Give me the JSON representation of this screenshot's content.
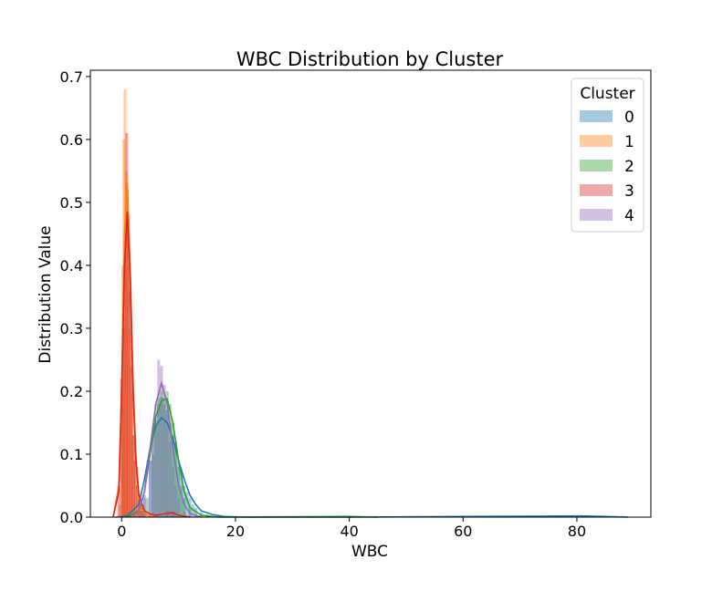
{
  "chart_data": {
    "type": "area",
    "title": "WBC Distribution by Cluster",
    "xlabel": "WBC",
    "ylabel": "Distribution Value",
    "xlim": [
      -5.5,
      93
    ],
    "ylim": [
      0,
      0.71
    ],
    "xticks": [
      0,
      20,
      40,
      60,
      80
    ],
    "xtick_labels": [
      "0",
      "20",
      "40",
      "60",
      "80"
    ],
    "yticks": [
      0.0,
      0.1,
      0.2,
      0.3,
      0.4,
      0.5,
      0.6,
      0.7
    ],
    "ytick_labels": [
      "0.0",
      "0.1",
      "0.2",
      "0.3",
      "0.4",
      "0.5",
      "0.6",
      "0.7"
    ],
    "legend": {
      "title": "Cluster",
      "placement": "top-right"
    },
    "grid": false,
    "series": [
      {
        "name": "0",
        "color": "#1f77b4",
        "hist": [
          [
            3,
            0.01
          ],
          [
            4,
            0.035
          ],
          [
            5,
            0.09
          ],
          [
            5.5,
            0.13
          ],
          [
            6,
            0.155
          ],
          [
            6.5,
            0.18
          ],
          [
            7,
            0.19
          ],
          [
            7.5,
            0.18
          ],
          [
            8,
            0.17
          ],
          [
            8.5,
            0.15
          ],
          [
            9,
            0.13
          ],
          [
            9.5,
            0.11
          ],
          [
            10,
            0.09
          ],
          [
            10.5,
            0.07
          ],
          [
            11,
            0.05
          ],
          [
            11.5,
            0.04
          ],
          [
            12,
            0.03
          ],
          [
            12.5,
            0.02
          ],
          [
            13,
            0.015
          ],
          [
            14,
            0.008
          ],
          [
            15,
            0.004
          ],
          [
            16,
            0.002
          ],
          [
            17,
            0.001
          ]
        ],
        "kde": [
          [
            -1,
            0
          ],
          [
            1,
            0.002
          ],
          [
            3,
            0.02
          ],
          [
            4,
            0.06
          ],
          [
            5,
            0.11
          ],
          [
            6,
            0.145
          ],
          [
            7,
            0.158
          ],
          [
            8,
            0.15
          ],
          [
            9,
            0.125
          ],
          [
            10,
            0.09
          ],
          [
            11,
            0.06
          ],
          [
            12,
            0.035
          ],
          [
            13,
            0.02
          ],
          [
            14,
            0.01
          ],
          [
            16,
            0.004
          ],
          [
            18,
            0.001
          ],
          [
            22,
            0
          ],
          [
            40,
            0
          ],
          [
            60,
            0.001
          ],
          [
            75,
            0.0015
          ],
          [
            80,
            0.002
          ],
          [
            85,
            0.001
          ],
          [
            89,
            0
          ]
        ]
      },
      {
        "name": "1",
        "color": "#ff7f0e",
        "hist": [
          [
            -0.3,
            0.02
          ],
          [
            0,
            0.18
          ],
          [
            0.2,
            0.4
          ],
          [
            0.4,
            0.6
          ],
          [
            0.6,
            0.68
          ],
          [
            0.8,
            0.55
          ],
          [
            1,
            0.52
          ],
          [
            1.2,
            0.4
          ],
          [
            1.5,
            0.3
          ],
          [
            1.8,
            0.2
          ],
          [
            2.1,
            0.13
          ],
          [
            2.4,
            0.09
          ],
          [
            2.7,
            0.05
          ],
          [
            3,
            0.03
          ],
          [
            3.3,
            0.02
          ],
          [
            3.6,
            0.01
          ]
        ],
        "kde": [
          [
            -1.5,
            0
          ],
          [
            -0.5,
            0.05
          ],
          [
            0,
            0.2
          ],
          [
            0.5,
            0.45
          ],
          [
            1,
            0.53
          ],
          [
            1.5,
            0.4
          ],
          [
            2,
            0.22
          ],
          [
            2.5,
            0.1
          ],
          [
            3,
            0.04
          ],
          [
            3.5,
            0.015
          ],
          [
            4.5,
            0.003
          ],
          [
            6,
            0
          ]
        ]
      },
      {
        "name": "2",
        "color": "#2ca02c",
        "hist": [
          [
            3.5,
            0.01
          ],
          [
            4.5,
            0.03
          ],
          [
            5.5,
            0.1
          ],
          [
            6,
            0.15
          ],
          [
            6.5,
            0.19
          ],
          [
            7,
            0.2
          ],
          [
            7.5,
            0.19
          ],
          [
            8,
            0.2
          ],
          [
            8.5,
            0.18
          ],
          [
            9,
            0.15
          ],
          [
            9.5,
            0.12
          ],
          [
            10,
            0.08
          ],
          [
            10.5,
            0.05
          ],
          [
            11,
            0.03
          ],
          [
            12,
            0.015
          ],
          [
            13,
            0.005
          ]
        ],
        "kde": [
          [
            1,
            0
          ],
          [
            3,
            0.01
          ],
          [
            4,
            0.04
          ],
          [
            5,
            0.1
          ],
          [
            6,
            0.16
          ],
          [
            7,
            0.185
          ],
          [
            8,
            0.188
          ],
          [
            9,
            0.15
          ],
          [
            10,
            0.09
          ],
          [
            11,
            0.04
          ],
          [
            12,
            0.015
          ],
          [
            14,
            0.003
          ],
          [
            17,
            0
          ],
          [
            40,
            0.001
          ],
          [
            45,
            0
          ]
        ]
      },
      {
        "name": "3",
        "color": "#d62728",
        "hist": [
          [
            -0.5,
            0.05
          ],
          [
            0,
            0.22
          ],
          [
            0.3,
            0.3
          ],
          [
            0.6,
            0.45
          ],
          [
            0.9,
            0.61
          ],
          [
            1.2,
            0.48
          ],
          [
            1.5,
            0.36
          ],
          [
            1.8,
            0.24
          ],
          [
            2.1,
            0.13
          ],
          [
            2.4,
            0.09
          ],
          [
            2.8,
            0.05
          ],
          [
            3.2,
            0.03
          ],
          [
            3.6,
            0.02
          ],
          [
            4,
            0.01
          ],
          [
            8,
            0.01
          ],
          [
            9,
            0.008
          ]
        ],
        "kde": [
          [
            -1.5,
            0
          ],
          [
            -0.5,
            0.04
          ],
          [
            0,
            0.2
          ],
          [
            0.5,
            0.4
          ],
          [
            1,
            0.485
          ],
          [
            1.5,
            0.38
          ],
          [
            2,
            0.2
          ],
          [
            2.5,
            0.09
          ],
          [
            3,
            0.035
          ],
          [
            4,
            0.01
          ],
          [
            5,
            0.005
          ],
          [
            6,
            0.003
          ],
          [
            8,
            0.006
          ],
          [
            9,
            0.007
          ],
          [
            10,
            0.003
          ],
          [
            12,
            0
          ]
        ]
      },
      {
        "name": "4",
        "color": "#9467bd",
        "hist": [
          [
            4,
            0.03
          ],
          [
            5,
            0.09
          ],
          [
            5.5,
            0.14
          ],
          [
            6,
            0.18
          ],
          [
            6.5,
            0.25
          ],
          [
            7,
            0.24
          ],
          [
            7.5,
            0.21
          ],
          [
            8,
            0.17
          ],
          [
            8.5,
            0.12
          ],
          [
            9,
            0.08
          ],
          [
            9.5,
            0.05
          ],
          [
            10,
            0.03
          ],
          [
            11,
            0.01
          ]
        ],
        "kde": [
          [
            2,
            0
          ],
          [
            3,
            0.01
          ],
          [
            4,
            0.04
          ],
          [
            5,
            0.11
          ],
          [
            6,
            0.18
          ],
          [
            7,
            0.213
          ],
          [
            8,
            0.18
          ],
          [
            9,
            0.11
          ],
          [
            10,
            0.05
          ],
          [
            11,
            0.02
          ],
          [
            12,
            0.006
          ],
          [
            14,
            0
          ]
        ]
      }
    ]
  }
}
